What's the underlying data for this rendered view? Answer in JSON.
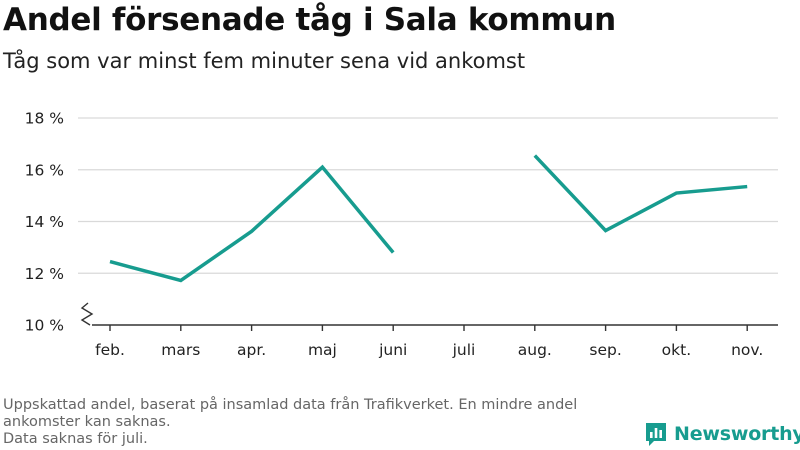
{
  "title": "Andel försenade tåg i Sala kommun",
  "subtitle": "Tåg som var minst fem minuter sena vid ankomst",
  "footnote": [
    "Uppskattad andel, baserat på insamlad data från Trafikverket. En mindre andel ankomster kan saknas.",
    "Data saknas för juli."
  ],
  "logo": {
    "name": "Newsworthy",
    "icon": "bar-chart-logo-icon"
  },
  "colors": {
    "line": "#179c8f",
    "grid": "#d9d9d9",
    "axis": "#333333",
    "logo": "#179c8f"
  },
  "chart_data": {
    "type": "line",
    "categories": [
      "feb.",
      "mars",
      "apr.",
      "maj",
      "juni",
      "juli",
      "aug.",
      "sep.",
      "okt.",
      "nov."
    ],
    "series": [
      {
        "values": [
          12.45,
          11.72,
          13.62,
          16.1,
          12.8,
          null,
          16.55,
          13.65,
          15.1,
          15.35
        ]
      }
    ],
    "yticks": [
      10,
      12,
      14,
      16,
      18
    ],
    "ytick_labels": [
      "10 %",
      "12 %",
      "14 %",
      "16 %",
      "18 %"
    ],
    "ylim": [
      10,
      18
    ],
    "y_axis_break": true,
    "grid": true,
    "xlabel": "",
    "ylabel": ""
  }
}
